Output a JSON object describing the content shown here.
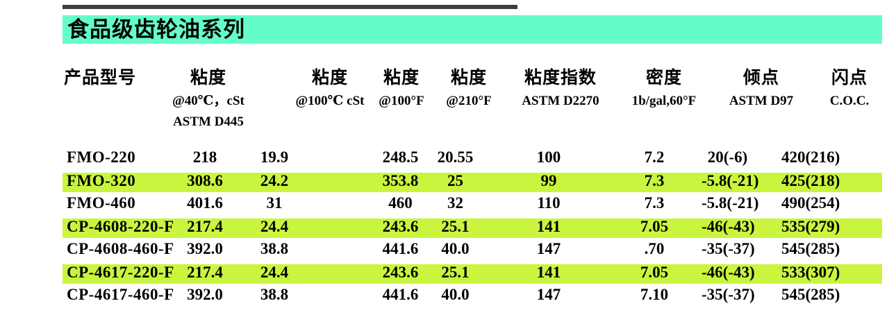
{
  "title": {
    "text": "食品级齿轮油系列",
    "band_color": "#65fccb"
  },
  "table": {
    "highlight_color": "#c9f53e",
    "columns": [
      {
        "id": "model",
        "lines": [
          "产品型号"
        ]
      },
      {
        "id": "v40",
        "lines": [
          "粘度",
          "@40℃，cSt",
          "ASTM D445"
        ]
      },
      {
        "id": "v100c",
        "lines": [
          "粘度",
          "@100℃ cSt"
        ]
      },
      {
        "id": "v100f",
        "lines": [
          "粘度",
          "@100°F"
        ]
      },
      {
        "id": "v210f",
        "lines": [
          "粘度",
          "@210°F"
        ]
      },
      {
        "id": "vi",
        "lines": [
          "粘度指数",
          "ASTM D2270"
        ]
      },
      {
        "id": "density",
        "lines": [
          "密度",
          "1b/gal,60°F"
        ]
      },
      {
        "id": "pour",
        "lines": [
          "倾点",
          "ASTM D97"
        ]
      },
      {
        "id": "flash",
        "lines": [
          "闪点",
          "C.O.C."
        ]
      }
    ],
    "rows": [
      {
        "model": "FMO-220",
        "v40": "218",
        "v100c": "19.9",
        "v100f": "248.5",
        "v210f": "20.55",
        "vi": "100",
        "density": "7.2",
        "pour": "20(-6)",
        "flash": "420(216)",
        "highlight": false
      },
      {
        "model": "FMO-320",
        "v40": "308.6",
        "v100c": "24.2",
        "v100f": "353.8",
        "v210f": "25",
        "vi": "99",
        "density": "7.3",
        "pour": "-5.8(-21)",
        "flash": "425(218)",
        "highlight": true
      },
      {
        "model": "FMO-460",
        "v40": "401.6",
        "v100c": "31",
        "v100f": "460",
        "v210f": "32",
        "vi": "110",
        "density": "7.3",
        "pour": "-5.8(-21)",
        "flash": "490(254)",
        "highlight": false
      },
      {
        "model": "CP-4608-220-F",
        "v40": "217.4",
        "v100c": "24.4",
        "v100f": "243.6",
        "v210f": "25.1",
        "vi": "141",
        "density": "7.05",
        "pour": "-46(-43)",
        "flash": "535(279)",
        "highlight": true
      },
      {
        "model": "CP-4608-460-F",
        "v40": "392.0",
        "v100c": "38.8",
        "v100f": "441.6",
        "v210f": "40.0",
        "vi": "147",
        "density": ".70",
        "pour": "-35(-37)",
        "flash": "545(285)",
        "highlight": false
      },
      {
        "model": "CP-4617-220-F",
        "v40": "217.4",
        "v100c": "24.4",
        "v100f": "243.6",
        "v210f": "25.1",
        "vi": "141",
        "density": "7.05",
        "pour": "-46(-43)",
        "flash": "533(307)",
        "highlight": true
      },
      {
        "model": "CP-4617-460-F",
        "v40": "392.0",
        "v100c": "38.8",
        "v100f": "441.6",
        "v210f": "40.0",
        "vi": "147",
        "density": "7.10",
        "pour": "-35(-37)",
        "flash": "545(285)",
        "highlight": false
      }
    ]
  }
}
